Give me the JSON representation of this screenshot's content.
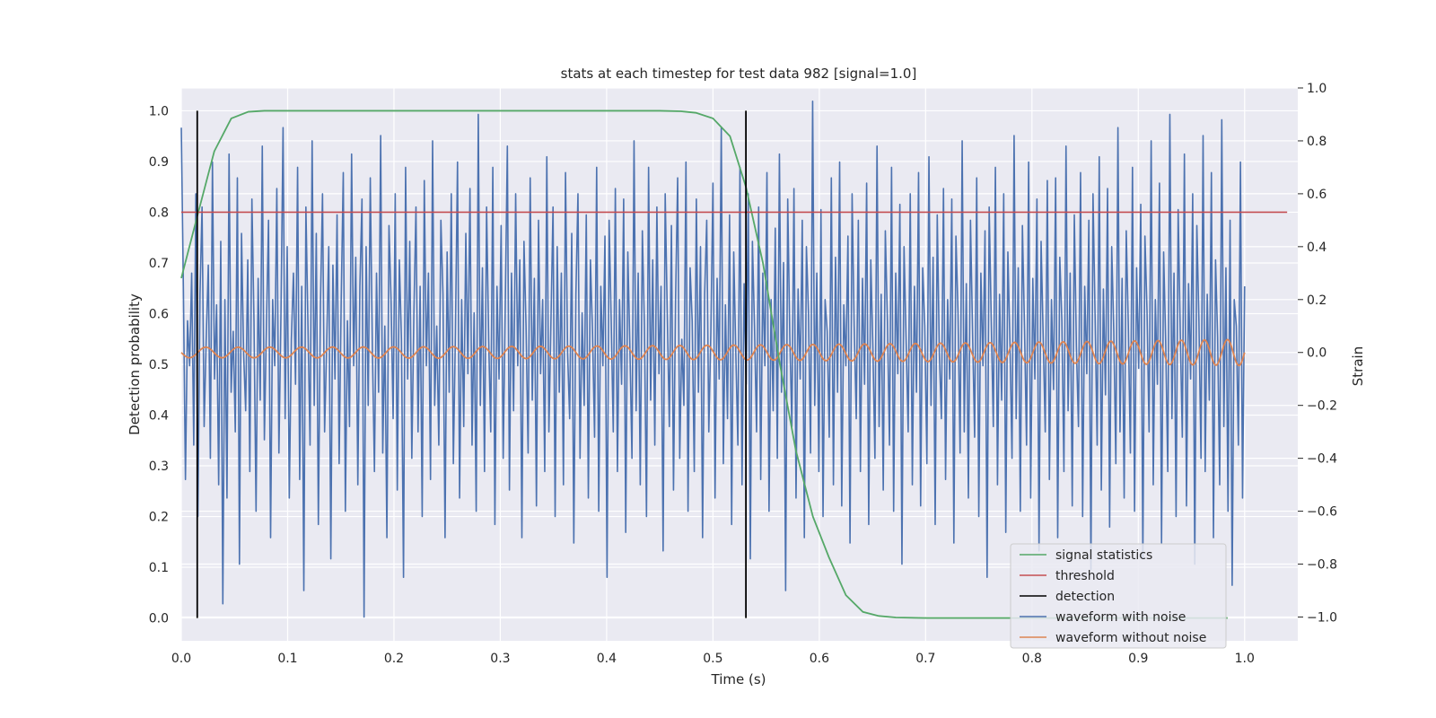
{
  "chart_data": {
    "type": "line",
    "title": "stats at each timestep for test data 982 [signal=1.0]",
    "xlabel": "Time (s)",
    "ylabel_left": "Detection probability",
    "ylabel_right": "Strain",
    "xlim": [
      0.0,
      1.05
    ],
    "ylim_left": [
      -0.045,
      1.045
    ],
    "ylim_right": [
      -1.09,
      1.0
    ],
    "x_ticks": [
      "0.0",
      "0.1",
      "0.2",
      "0.3",
      "0.4",
      "0.5",
      "0.6",
      "0.7",
      "0.8",
      "0.9",
      "1.0"
    ],
    "y_left_ticks": [
      "0.0",
      "0.1",
      "0.2",
      "0.3",
      "0.4",
      "0.5",
      "0.6",
      "0.7",
      "0.8",
      "0.9",
      "1.0"
    ],
    "y_right_ticks": [
      "−1.0",
      "−0.8",
      "−0.6",
      "−0.4",
      "−0.2",
      "0.0",
      "0.2",
      "0.4",
      "0.6",
      "0.8",
      "1.0"
    ],
    "grid": true,
    "legend_placement": "lower-right",
    "colors": {
      "plot_bg": "#eaeaf2",
      "grid": "#ffffff",
      "signal": "#55a868",
      "threshold": "#c44e52",
      "detection": "#000000",
      "noisy": "#4c72b0",
      "clean": "#dd8452"
    },
    "series": [
      {
        "name": "signal statistics",
        "axis": "left",
        "x": [
          0.0,
          0.016,
          0.031,
          0.047,
          0.063,
          0.078,
          0.094,
          0.25,
          0.45,
          0.47,
          0.484,
          0.5,
          0.516,
          0.531,
          0.547,
          0.563,
          0.578,
          0.594,
          0.609,
          0.625,
          0.641,
          0.656,
          0.672,
          0.7,
          0.8,
          0.9,
          0.984
        ],
        "y": [
          0.67,
          0.8,
          0.92,
          0.985,
          0.998,
          1.0,
          1.0,
          1.0,
          1.0,
          0.999,
          0.996,
          0.985,
          0.95,
          0.85,
          0.7,
          0.5,
          0.33,
          0.2,
          0.12,
          0.045,
          0.012,
          0.004,
          0.001,
          0.0,
          0.0,
          0.0,
          0.0
        ]
      },
      {
        "name": "threshold",
        "axis": "left",
        "x": [
          0.0,
          1.04
        ],
        "y": [
          0.8,
          0.8
        ]
      },
      {
        "name": "detection",
        "axis": "left",
        "x_positions": [
          0.015,
          0.531
        ],
        "y_range": [
          0.0,
          1.0
        ]
      },
      {
        "name": "waveform with noise",
        "axis": "right",
        "x_range": [
          0.0,
          1.0
        ],
        "y": [
          0.85,
          0.25,
          -0.48,
          0.12,
          -0.05,
          0.3,
          -0.35,
          0.6,
          -0.62,
          0.22,
          0.55,
          -0.28,
          0.05,
          0.33,
          -0.4,
          0.72,
          -0.1,
          0.18,
          -0.5,
          0.42,
          -0.95,
          0.2,
          -0.55,
          0.75,
          -0.15,
          0.08,
          -0.3,
          0.66,
          -0.8,
          0.45,
          0.0,
          -0.22,
          0.35,
          -0.45,
          0.58,
          0.12,
          -0.6,
          0.28,
          -0.18,
          0.78,
          -0.33,
          0.1,
          0.5,
          -0.7,
          0.2,
          -0.05,
          0.62,
          -0.38,
          0.15,
          0.85,
          -0.25,
          0.4,
          -0.55,
          0.05,
          0.3,
          -0.12,
          0.7,
          -0.48,
          0.25,
          -0.9,
          0.55,
          0.1,
          -0.35,
          0.8,
          -0.2,
          0.45,
          -0.65,
          0.18,
          0.6,
          -0.3,
          0.03,
          0.4,
          -0.78,
          0.33,
          -0.1,
          0.52,
          -0.42,
          0.2,
          0.68,
          -0.6,
          0.12,
          -0.28,
          0.75,
          -0.05,
          0.36,
          -0.5,
          0.25,
          0.58,
          -1.0,
          0.4,
          -0.2,
          0.66,
          0.02,
          -0.45,
          0.3,
          -0.15,
          0.82,
          -0.38,
          0.1,
          -0.7,
          0.48,
          0.2,
          -0.25,
          0.6,
          -0.52,
          0.35,
          0.05,
          -0.85,
          0.7,
          -0.1,
          0.42,
          -0.4,
          0.15,
          0.55,
          -0.3,
          0.25,
          -0.62,
          0.65,
          -0.05,
          0.3,
          -0.48,
          0.8,
          -0.2,
          0.1,
          -0.35,
          0.5,
          0.22,
          -0.7,
          0.38,
          -0.15,
          0.6,
          -0.42,
          0.08,
          0.72,
          -0.55,
          0.2,
          -0.28,
          0.45,
          -0.08,
          0.62,
          -0.35,
          0.15,
          -0.6,
          0.9,
          -0.2,
          0.32,
          -0.45,
          0.55,
          0.05,
          -0.3,
          0.7,
          -0.65,
          0.25,
          -0.1,
          0.48,
          -0.4,
          0.18,
          0.78,
          -0.52,
          0.3,
          -0.22,
          0.6,
          -0.05,
          0.35,
          -0.7,
          0.42,
          0.1,
          -0.38,
          0.66,
          -0.18,
          0.28,
          -0.58,
          0.5,
          -0.08,
          0.2,
          -0.45,
          0.74,
          -0.3,
          0.12,
          0.55,
          -0.62,
          0.4,
          -0.15,
          0.3,
          -0.5,
          0.68,
          0.0,
          -0.25,
          0.45,
          -0.72,
          0.22,
          0.6,
          -0.4,
          0.15,
          -0.2,
          0.52,
          -0.55,
          0.35,
          0.08,
          -0.32,
          0.7,
          -0.6,
          0.25,
          -0.05,
          0.44,
          -0.85,
          0.5,
          0.12,
          -0.3,
          0.62,
          -0.45,
          0.2,
          -0.12,
          0.58,
          -0.68,
          0.38,
          0.02,
          -0.4,
          0.8,
          -0.22,
          0.3,
          -0.5,
          0.46,
          0.1,
          -0.62,
          0.7,
          -0.18,
          0.35,
          -0.35,
          0.55,
          -0.08,
          0.25,
          -0.75,
          0.6,
          0.15,
          -0.28,
          0.48,
          -0.52,
          0.2,
          0.66,
          -0.4,
          0.05,
          -0.2,
          0.72,
          -0.6,
          0.32,
          0.12,
          -0.45,
          0.58,
          -0.15,
          0.4,
          -0.7,
          0.22,
          0.5,
          -0.3,
          0.08,
          0.64,
          -0.55,
          0.28,
          -0.1,
          0.85,
          -0.42,
          0.18,
          -0.25,
          0.52,
          -0.65,
          0.38,
          0.0,
          -0.35,
          0.7,
          -0.5,
          0.26,
          -0.12,
          0.6,
          -0.78,
          0.42,
          0.1,
          -0.3,
          0.55,
          -0.48,
          0.3,
          -0.05,
          0.68,
          -0.6,
          0.2,
          -0.22,
          0.47,
          -0.4,
          0.75,
          -0.15,
          0.34,
          -0.9,
          0.58,
          0.06,
          -0.28,
          0.62,
          -0.55,
          0.24,
          -0.1,
          0.5,
          -0.7,
          0.4,
          0.15,
          -0.38,
          0.95,
          -0.2,
          0.3,
          -0.45,
          0.54,
          -0.62,
          0.2,
          0.08,
          -0.32,
          0.66,
          -0.5,
          0.36,
          -0.15,
          0.72,
          -0.58,
          0.18,
          -0.05,
          0.44,
          -0.72,
          0.6,
          0.1,
          -0.25,
          0.5,
          -0.45,
          0.28,
          -0.12,
          0.64,
          -0.65,
          0.35,
          0.02,
          -0.4,
          0.78,
          -0.28,
          0.22,
          -0.52,
          0.46,
          0.12,
          -0.35,
          0.7,
          -0.6,
          0.3,
          -0.08,
          0.56,
          -0.8,
          0.4,
          0.05,
          -0.3,
          0.6,
          -0.5,
          0.25,
          -0.15,
          0.68,
          -0.58,
          0.32,
          0.1,
          -0.42,
          0.74,
          -0.2,
          0.36,
          -0.65,
          0.52,
          0.0,
          -0.25,
          0.62,
          -0.48,
          0.2,
          -0.1,
          0.58,
          -0.72,
          0.44,
          0.15,
          -0.38,
          0.8,
          -0.3,
          0.26,
          -0.55,
          0.5,
          0.08,
          -0.32,
          0.66,
          -0.62,
          0.3,
          -0.05,
          0.46,
          -0.85,
          0.55,
          0.12,
          -0.28,
          0.7,
          -0.5,
          0.22,
          -0.18,
          0.6,
          -0.68,
          0.38,
          0.04,
          -0.4,
          0.82,
          -0.25,
          0.32,
          -0.6,
          0.48,
          0.1,
          -0.35,
          0.72,
          -0.55,
          0.28,
          -0.1,
          0.58,
          -0.75,
          0.42,
          0.06,
          -0.3,
          0.65,
          -0.48,
          0.2,
          -0.14,
          0.66,
          -0.7,
          0.36,
          0.12,
          -0.45,
          0.78,
          -0.22,
          0.3,
          -0.58,
          0.52,
          0.02,
          -0.28,
          0.68,
          -0.62,
          0.25,
          -0.08,
          0.5,
          -0.82,
          0.6,
          0.14,
          -0.35,
          0.74,
          -0.52,
          0.24,
          -0.16,
          0.62,
          -0.66,
          0.4,
          0.08,
          -0.42,
          0.85,
          -0.3,
          0.28,
          -0.55,
          0.46,
          0.1,
          -0.38,
          0.7,
          -0.6,
          0.32,
          -0.06,
          0.56,
          -0.78,
          0.44,
          0.16,
          -0.3,
          0.8,
          -0.5,
          0.2,
          -0.12,
          0.64,
          -0.72,
          0.38,
          0.04,
          -0.45,
          0.9,
          -0.25,
          0.3,
          -0.62,
          0.54,
          0.08,
          -0.32,
          0.75,
          -0.58,
          0.26,
          -0.1,
          0.6,
          -0.8,
          0.48,
          0.12,
          -0.4,
          0.82,
          -0.45,
          0.22,
          -0.18,
          0.68,
          -0.7,
          0.35,
          0.06,
          -0.5,
          0.88,
          -0.28,
          0.32,
          -0.6,
          0.5,
          -0.88,
          0.2,
          0.1,
          -0.35,
          0.72,
          -0.55,
          0.25
        ]
      },
      {
        "name": "waveform without noise",
        "axis": "right",
        "x_range": [
          0.0,
          1.0
        ],
        "amplitude_start": 0.02,
        "amplitude_end": 0.05,
        "cycles": 39.5
      }
    ]
  },
  "legend": {
    "signal": "signal statistics",
    "threshold": "threshold",
    "detection": "detection",
    "noisy": "waveform with noise",
    "clean": "waveform without noise"
  }
}
